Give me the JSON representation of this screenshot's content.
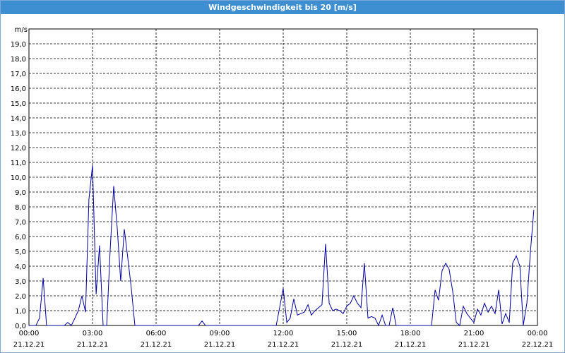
{
  "chart_data": {
    "type": "line",
    "title": "Windgeschwindigkeit bis 20 [m/s]",
    "y_label": "m/s",
    "x": [
      0,
      0.33,
      0.5,
      0.67,
      0.83,
      1.67,
      1.83,
      2.0,
      2.17,
      2.33,
      2.5,
      2.67,
      2.83,
      3.0,
      3.17,
      3.33,
      3.5,
      3.67,
      3.83,
      4.0,
      4.17,
      4.33,
      4.5,
      4.67,
      4.83,
      5.0,
      8.0,
      8.17,
      8.33,
      11.67,
      11.83,
      12.0,
      12.17,
      12.33,
      12.5,
      12.67,
      12.83,
      13.0,
      13.17,
      13.33,
      13.5,
      13.67,
      13.83,
      14.0,
      14.17,
      14.33,
      14.5,
      14.67,
      14.83,
      15.0,
      15.17,
      15.33,
      15.5,
      15.67,
      15.83,
      16.0,
      16.17,
      16.33,
      16.5,
      16.67,
      16.83,
      17.0,
      17.17,
      17.33,
      19.0,
      19.17,
      19.33,
      19.5,
      19.67,
      19.83,
      20.0,
      20.17,
      20.33,
      20.5,
      20.67,
      20.83,
      21.0,
      21.17,
      21.33,
      21.5,
      21.67,
      21.83,
      22.0,
      22.17,
      22.33,
      22.5,
      22.67,
      22.83,
      23.0,
      23.17,
      23.33,
      23.5,
      23.67,
      23.83
    ],
    "series": [
      {
        "name": "Windgeschwindigkeit",
        "color": "#0000a0",
        "values": [
          0,
          0,
          0.5,
          3.2,
          0,
          0,
          0.2,
          0,
          0.5,
          1.0,
          2.0,
          0.9,
          8.5,
          10.8,
          2.1,
          5.4,
          0,
          0,
          5.0,
          9.4,
          6.5,
          3.0,
          6.5,
          4.5,
          2.5,
          0,
          0,
          0.3,
          0,
          0,
          1.2,
          2.5,
          0.2,
          0.5,
          1.8,
          0.7,
          0.8,
          0.9,
          1.4,
          0.7,
          1.0,
          1.2,
          1.4,
          5.5,
          1.5,
          1.0,
          1.1,
          1.0,
          0.8,
          1.3,
          1.5,
          2.0,
          1.5,
          1.2,
          4.2,
          0.5,
          0.6,
          0.5,
          0,
          0.7,
          0,
          0,
          1.2,
          0,
          0,
          2.4,
          1.7,
          3.7,
          4.2,
          3.8,
          2.3,
          0.2,
          0,
          1.3,
          0.8,
          0.5,
          0.2,
          1.1,
          0.7,
          1.5,
          0.9,
          1.3,
          0.8,
          2.4,
          0.1,
          0.8,
          0.2,
          4.2,
          4.7,
          4.0,
          0,
          1.5,
          5.0,
          7.8
        ]
      }
    ],
    "xlim": [
      0,
      24
    ],
    "xticks": [
      {
        "value": 0,
        "label": "00:00"
      },
      {
        "value": 3,
        "label": "03:00"
      },
      {
        "value": 6,
        "label": "06:00"
      },
      {
        "value": 9,
        "label": "09:00"
      },
      {
        "value": 12,
        "label": "12:00"
      },
      {
        "value": 15,
        "label": "15:00"
      },
      {
        "value": 18,
        "label": "18:00"
      },
      {
        "value": 21,
        "label": "21:00"
      },
      {
        "value": 24,
        "label": "00:00"
      }
    ],
    "xtick_dates": [
      "21.12.21",
      "21.12.21",
      "21.12.21",
      "21.12.21",
      "21.12.21",
      "21.12.21",
      "21.12.21",
      "21.12.21",
      "22.12.21"
    ],
    "ylim": [
      0,
      20
    ],
    "yticks": [
      {
        "value": 0,
        "label": "0,0"
      },
      {
        "value": 1,
        "label": "1,0"
      },
      {
        "value": 2,
        "label": "2,0"
      },
      {
        "value": 3,
        "label": "3,0"
      },
      {
        "value": 4,
        "label": "4,0"
      },
      {
        "value": 5,
        "label": "5,0"
      },
      {
        "value": 6,
        "label": "6,0"
      },
      {
        "value": 7,
        "label": "7,0"
      },
      {
        "value": 8,
        "label": "8,0"
      },
      {
        "value": 9,
        "label": "9,0"
      },
      {
        "value": 10,
        "label": "10,0"
      },
      {
        "value": 11,
        "label": "11,0"
      },
      {
        "value": 12,
        "label": "12,0"
      },
      {
        "value": 13,
        "label": "13,0"
      },
      {
        "value": 14,
        "label": "14,0"
      },
      {
        "value": 15,
        "label": "15,0"
      },
      {
        "value": 16,
        "label": "16,0"
      },
      {
        "value": 17,
        "label": "17,0"
      },
      {
        "value": 18,
        "label": "18,0"
      },
      {
        "value": 19,
        "label": "19,0"
      }
    ],
    "grid": true
  }
}
